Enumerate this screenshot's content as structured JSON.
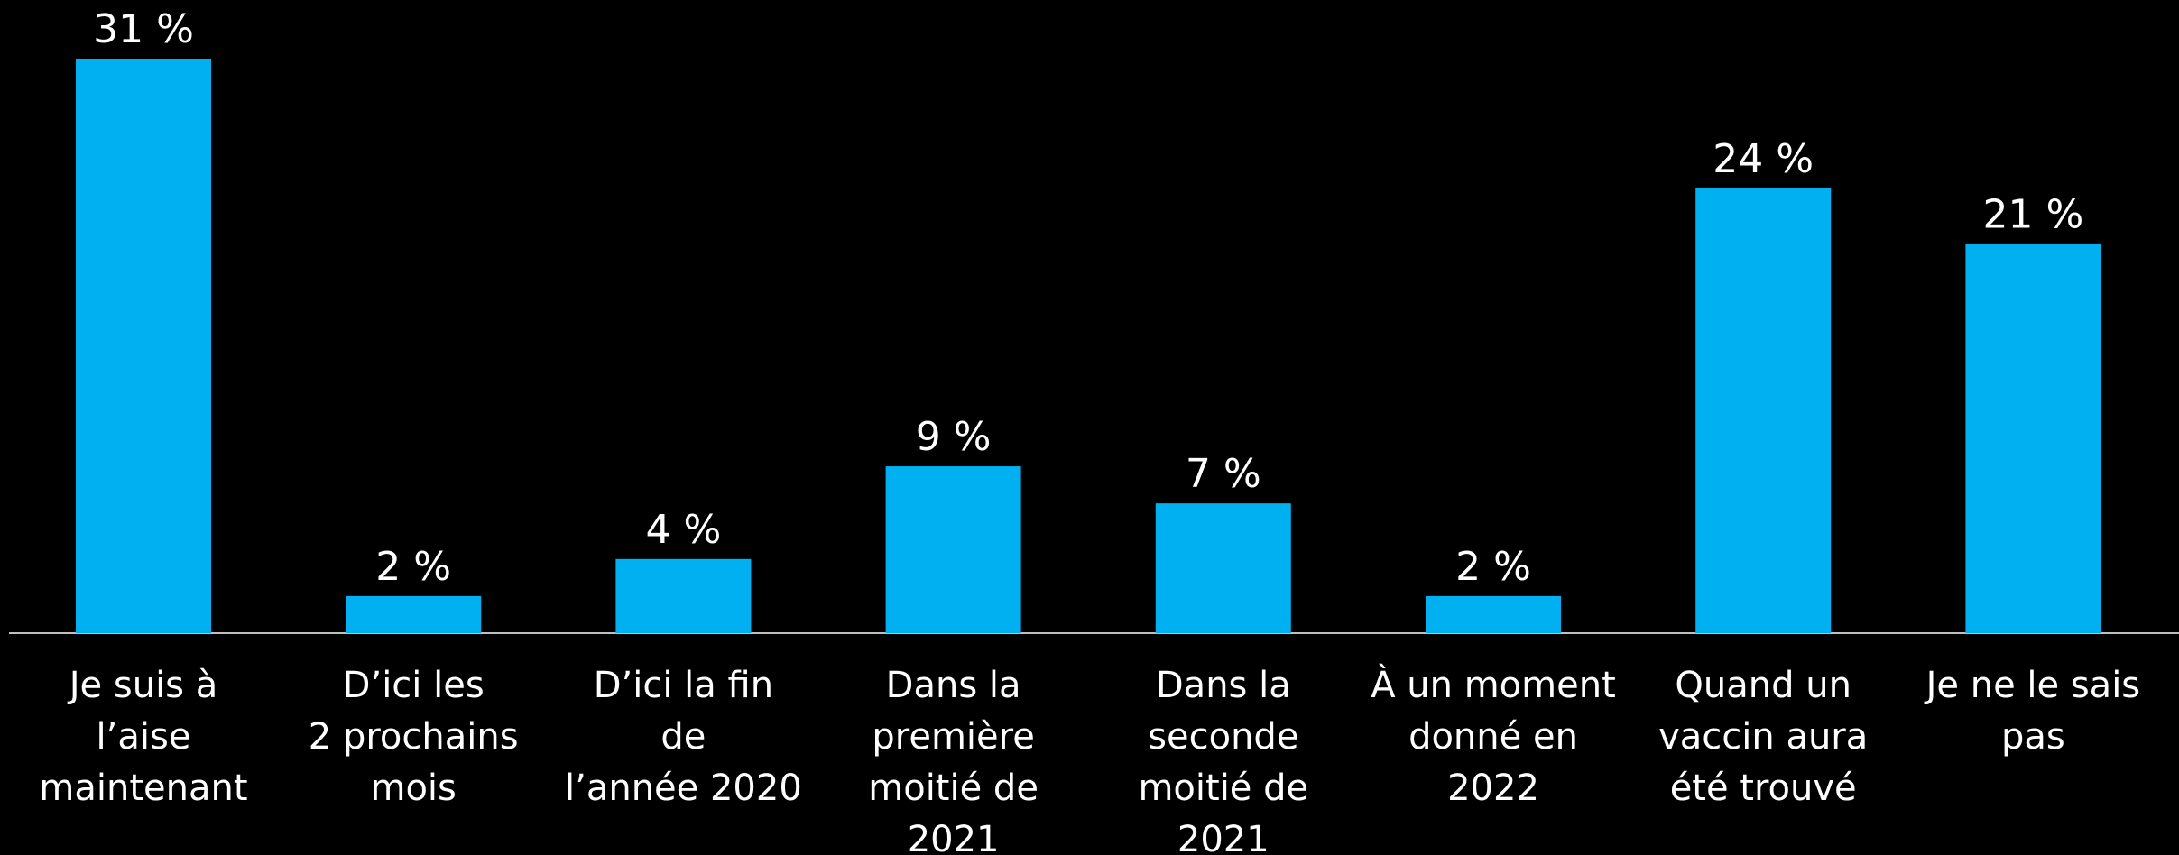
{
  "chart_data": {
    "type": "bar",
    "categories": [
      "Je suis à\nl’aise\nmaintenant",
      "D’ici les\n2 prochains\nmois",
      "D’ici la fin\nde\nl’année 2020",
      "Dans la\npremière\nmoitié de\n2021",
      "Dans la\nseconde\nmoitié de\n2021",
      "À un moment\ndonné en\n2022",
      "Quand un\nvaccin aura\nété trouvé",
      "Je ne le sais\npas"
    ],
    "values": [
      31,
      2,
      4,
      9,
      7,
      2,
      24,
      21
    ],
    "value_labels": [
      "31 %",
      "2 %",
      "4 %",
      "9 %",
      "7 %",
      "2 %",
      "24 %",
      "21 %"
    ],
    "color": "#00b0f0"
  }
}
